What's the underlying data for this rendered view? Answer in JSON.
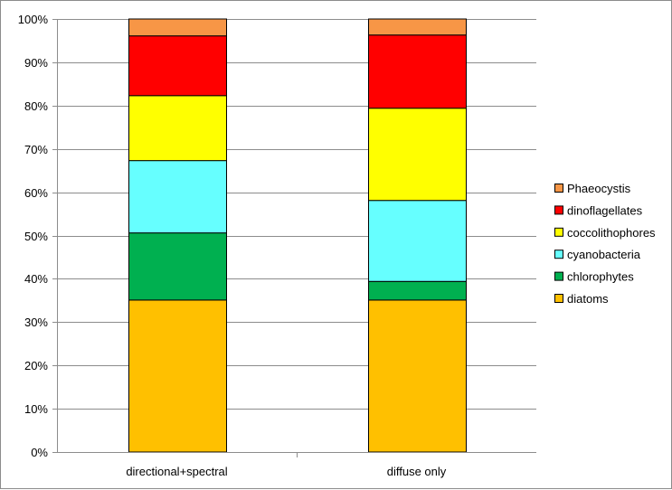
{
  "chart_data": {
    "type": "bar",
    "stacked": true,
    "percent": true,
    "categories": [
      "directional+spectral",
      "diffuse only"
    ],
    "series": [
      {
        "name": "diatoms",
        "color": "#FFC000",
        "values": [
          35.1,
          35.1
        ]
      },
      {
        "name": "chlorophytes",
        "color": "#00B050",
        "values": [
          15.5,
          4.3
        ]
      },
      {
        "name": "cyanobacteria",
        "color": "#66FFFF",
        "values": [
          16.7,
          18.7
        ]
      },
      {
        "name": "coccolithophores",
        "color": "#FFFF00",
        "values": [
          15.0,
          21.3
        ]
      },
      {
        "name": "dinoflagellates",
        "color": "#FF0000",
        "values": [
          13.8,
          16.9
        ]
      },
      {
        "name": "Phaeocystis",
        "color": "#F79646",
        "values": [
          3.9,
          3.7
        ]
      }
    ],
    "ylim": [
      0,
      100
    ],
    "yticks": [
      "0%",
      "10%",
      "20%",
      "30%",
      "40%",
      "50%",
      "60%",
      "70%",
      "80%",
      "90%",
      "100%"
    ],
    "grid": true,
    "legend_position": "right",
    "legend_order": "reverse",
    "title": "",
    "xlabel": "",
    "ylabel": ""
  }
}
